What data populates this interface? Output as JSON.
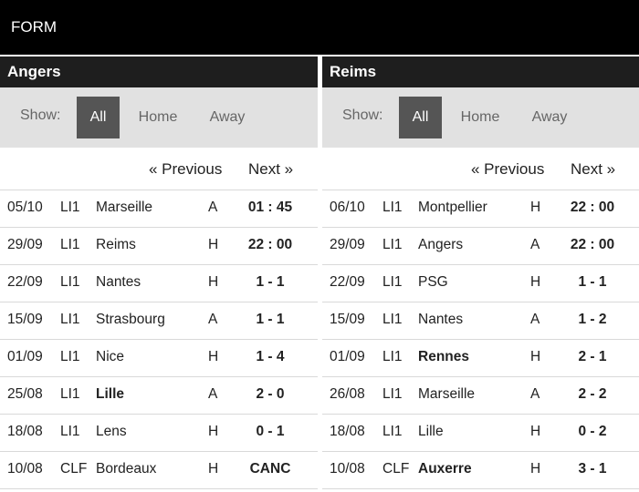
{
  "header": {
    "title": "FORM"
  },
  "filters": {
    "show_label": "Show:",
    "all": "All",
    "home": "Home",
    "away": "Away"
  },
  "pager": {
    "previous": "« Previous",
    "next": "Next »"
  },
  "left": {
    "team": "Angers",
    "matches": [
      {
        "date": "05/10",
        "comp": "LI1",
        "opponent": "Marseille",
        "ha": "A",
        "score": "01 : 45",
        "bold_opp": false
      },
      {
        "date": "29/09",
        "comp": "LI1",
        "opponent": "Reims",
        "ha": "H",
        "score": "22 : 00",
        "bold_opp": false
      },
      {
        "date": "22/09",
        "comp": "LI1",
        "opponent": "Nantes",
        "ha": "H",
        "score": "1 - 1",
        "bold_opp": false
      },
      {
        "date": "15/09",
        "comp": "LI1",
        "opponent": "Strasbourg",
        "ha": "A",
        "score": "1 - 1",
        "bold_opp": false
      },
      {
        "date": "01/09",
        "comp": "LI1",
        "opponent": "Nice",
        "ha": "H",
        "score": "1 - 4",
        "bold_opp": false
      },
      {
        "date": "25/08",
        "comp": "LI1",
        "opponent": "Lille",
        "ha": "A",
        "score": "2 - 0",
        "bold_opp": true
      },
      {
        "date": "18/08",
        "comp": "LI1",
        "opponent": "Lens",
        "ha": "H",
        "score": "0 - 1",
        "bold_opp": false
      },
      {
        "date": "10/08",
        "comp": "CLF",
        "opponent": "Bordeaux",
        "ha": "H",
        "score": "CANC",
        "bold_opp": false
      }
    ]
  },
  "right": {
    "team": "Reims",
    "matches": [
      {
        "date": "06/10",
        "comp": "LI1",
        "opponent": "Montpellier",
        "ha": "H",
        "score": "22 : 00",
        "bold_opp": false
      },
      {
        "date": "29/09",
        "comp": "LI1",
        "opponent": "Angers",
        "ha": "A",
        "score": "22 : 00",
        "bold_opp": false
      },
      {
        "date": "22/09",
        "comp": "LI1",
        "opponent": "PSG",
        "ha": "H",
        "score": "1 - 1",
        "bold_opp": false
      },
      {
        "date": "15/09",
        "comp": "LI1",
        "opponent": "Nantes",
        "ha": "A",
        "score": "1 - 2",
        "bold_opp": false
      },
      {
        "date": "01/09",
        "comp": "LI1",
        "opponent": "Rennes",
        "ha": "H",
        "score": "2 - 1",
        "bold_opp": true
      },
      {
        "date": "26/08",
        "comp": "LI1",
        "opponent": "Marseille",
        "ha": "A",
        "score": "2 - 2",
        "bold_opp": false
      },
      {
        "date": "18/08",
        "comp": "LI1",
        "opponent": "Lille",
        "ha": "H",
        "score": "0 - 2",
        "bold_opp": false
      },
      {
        "date": "10/08",
        "comp": "CLF",
        "opponent": "Auxerre",
        "ha": "H",
        "score": "3 - 1",
        "bold_opp": true
      }
    ]
  }
}
